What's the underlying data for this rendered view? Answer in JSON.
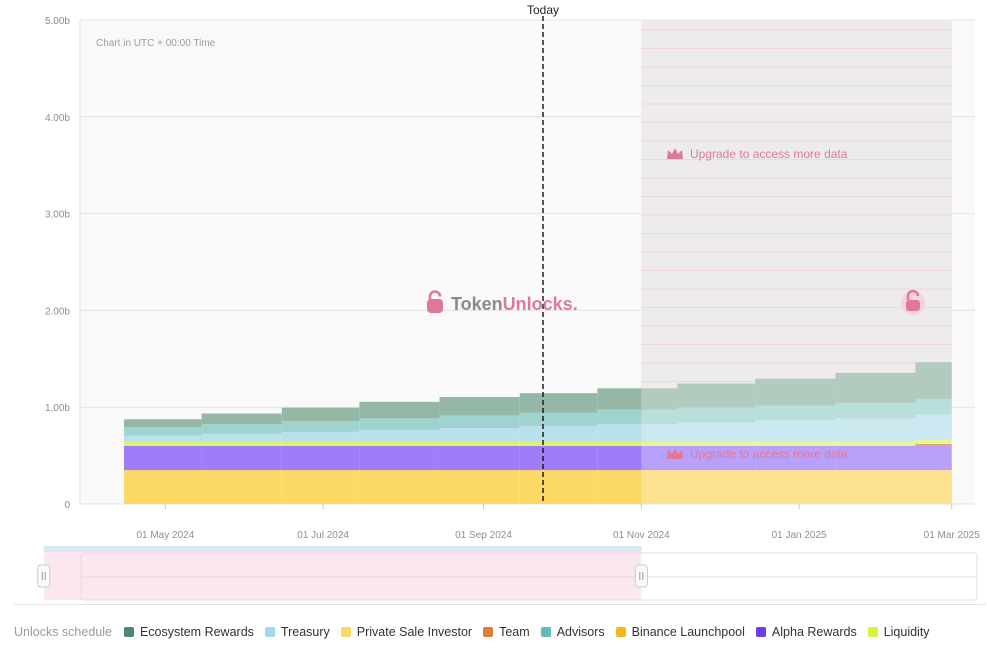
{
  "chart_data": {
    "type": "area",
    "title": "",
    "note": "Chart in UTC + 00:00 Time",
    "today_label": "Today",
    "today_x": "2024-09-24",
    "y_unit": "b",
    "ylim": [
      0,
      5.0
    ],
    "y_ticks": [
      {
        "value": 0,
        "label": "0"
      },
      {
        "value": 1.0,
        "label": "1.00b"
      },
      {
        "value": 2.0,
        "label": "2.00b"
      },
      {
        "value": 3.0,
        "label": "3.00b"
      },
      {
        "value": 4.0,
        "label": "4.00b"
      },
      {
        "value": 5.0,
        "label": "5.00b"
      }
    ],
    "xlim": [
      "2024-03-29",
      "2025-03-10"
    ],
    "x_ticks": [
      {
        "date": "2024-05-01",
        "label": "01 May 2024"
      },
      {
        "date": "2024-07-01",
        "label": "01 Jul 2024"
      },
      {
        "date": "2024-09-01",
        "label": "01 Sep 2024"
      },
      {
        "date": "2024-11-01",
        "label": "01 Nov 2024"
      },
      {
        "date": "2025-01-01",
        "label": "01 Jan 2025"
      },
      {
        "date": "2025-03-01",
        "label": "01 Mar 2025"
      }
    ],
    "steps": [
      "2024-04-15",
      "2024-05-15",
      "2024-06-15",
      "2024-07-15",
      "2024-08-15",
      "2024-09-15",
      "2024-10-15",
      "2024-11-15",
      "2024-12-15",
      "2025-01-15",
      "2025-02-15",
      "2025-03-01"
    ],
    "series": [
      {
        "name": "Private Sale Investor",
        "color": "#fcd965",
        "values": [
          0.35,
          0.35,
          0.35,
          0.35,
          0.35,
          0.35,
          0.35,
          0.35,
          0.35,
          0.35,
          0.35
        ]
      },
      {
        "name": "Binance Launchpool",
        "color": "#f3b817",
        "values": [
          0,
          0,
          0,
          0,
          0,
          0,
          0,
          0,
          0,
          0,
          0
        ]
      },
      {
        "name": "Alpha Rewards",
        "color": "#9f7df8",
        "values": [
          0.25,
          0.25,
          0.25,
          0.25,
          0.25,
          0.25,
          0.25,
          0.25,
          0.25,
          0.25,
          0.25
        ]
      },
      {
        "name": "Team",
        "color": "#e37a35",
        "values": [
          0,
          0,
          0,
          0,
          0,
          0,
          0,
          0,
          0,
          0,
          0.02
        ]
      },
      {
        "name": "Liquidity",
        "color": "#dcf56a",
        "values": [
          0.045,
          0.045,
          0.045,
          0.045,
          0.045,
          0.045,
          0.045,
          0.045,
          0.045,
          0.045,
          0.045
        ]
      },
      {
        "name": "Treasury",
        "color": "#b9e1ec",
        "values": [
          0.06,
          0.08,
          0.1,
          0.12,
          0.14,
          0.16,
          0.18,
          0.2,
          0.22,
          0.24,
          0.26
        ]
      },
      {
        "name": "Advisors",
        "color": "#9fd3d0",
        "values": [
          0.09,
          0.1,
          0.11,
          0.12,
          0.13,
          0.14,
          0.15,
          0.15,
          0.15,
          0.16,
          0.16
        ]
      },
      {
        "name": "Ecosystem Rewards",
        "color": "#95b7a6",
        "values": [
          0.08,
          0.11,
          0.14,
          0.17,
          0.19,
          0.2,
          0.22,
          0.25,
          0.28,
          0.31,
          0.38
        ]
      }
    ],
    "locked_from": "2024-11-01",
    "locked_message": "Upgrade to access more data",
    "watermark": {
      "part1": "Token",
      "part2": "Unlocks",
      "part3": "."
    },
    "navigator": {
      "from": "2024-03-15",
      "to": "2024-11-01"
    },
    "legend_title": "Unlocks schedule",
    "legend": [
      {
        "name": "Ecosystem Rewards",
        "color": "#4c8a6e"
      },
      {
        "name": "Treasury",
        "color": "#a6d8e8"
      },
      {
        "name": "Private Sale Investor",
        "color": "#fcd965"
      },
      {
        "name": "Team",
        "color": "#e37a35"
      },
      {
        "name": "Advisors",
        "color": "#62bdb8"
      },
      {
        "name": "Binance Launchpool",
        "color": "#f3b817"
      },
      {
        "name": "Alpha Rewards",
        "color": "#6a3df0"
      },
      {
        "name": "Liquidity",
        "color": "#d6f53b"
      }
    ],
    "colors": {
      "accent": "#e0789a",
      "grid": "#e3e3e3",
      "locked_bg": "#e6e3e5",
      "lock_line": "#e8c6cf"
    }
  }
}
